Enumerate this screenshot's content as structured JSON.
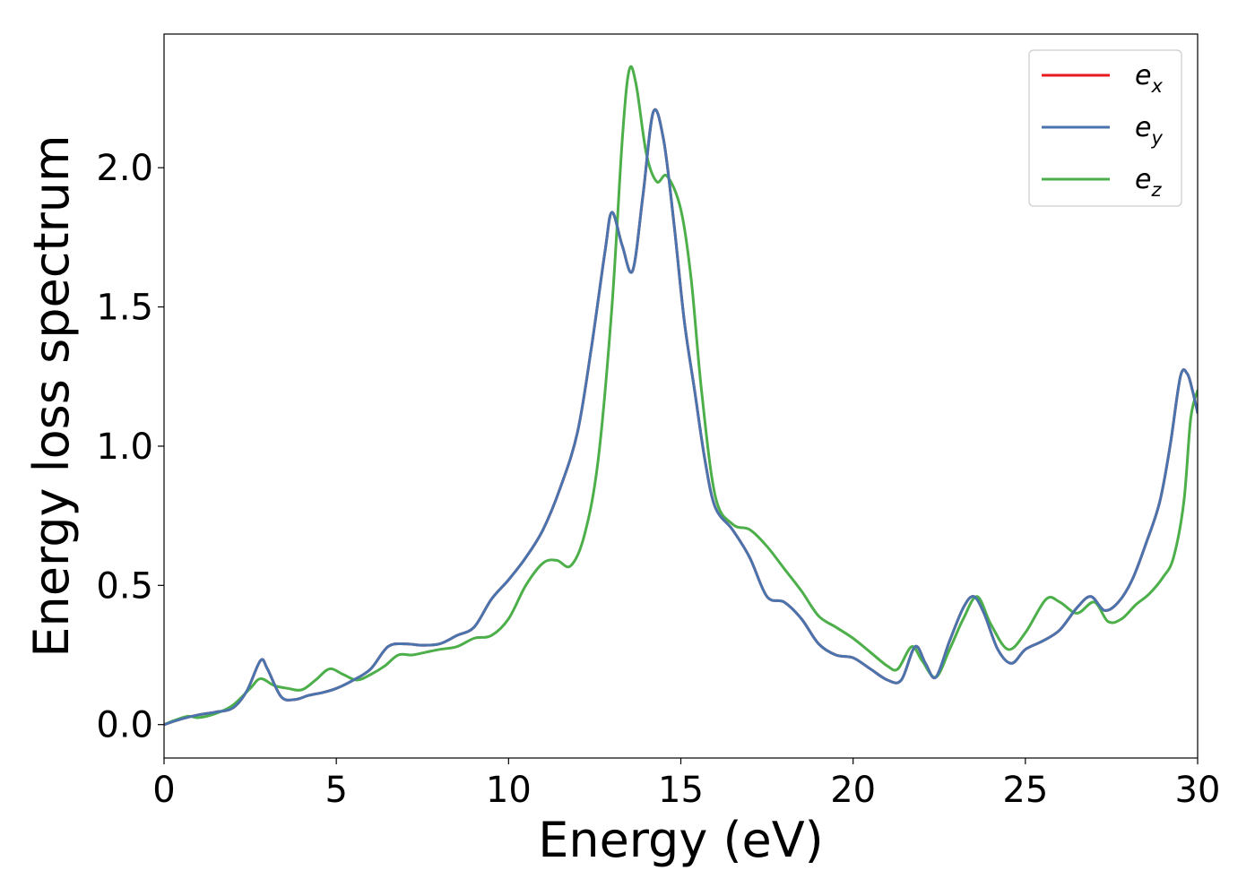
{
  "chart_data": {
    "type": "line",
    "xlabel": "Energy (eV)",
    "ylabel": "Energy loss spectrum",
    "xlim": [
      0,
      30
    ],
    "ylim": [
      -0.12,
      2.48
    ],
    "xticks": [
      0,
      5,
      10,
      15,
      20,
      25,
      30
    ],
    "yticks": [
      0.0,
      0.5,
      1.0,
      1.5,
      2.0
    ],
    "xtick_labels": [
      "0",
      "5",
      "10",
      "15",
      "20",
      "25",
      "30"
    ],
    "ytick_labels": [
      "0.0",
      "0.5",
      "1.0",
      "1.5",
      "2.0"
    ],
    "grid": false,
    "legend": {
      "position": "upper right",
      "items": [
        {
          "base": "e",
          "sub": "x"
        },
        {
          "base": "e",
          "sub": "y"
        },
        {
          "base": "e",
          "sub": "z"
        }
      ]
    },
    "series": [
      {
        "name": "e_x",
        "color": "#e41a1c",
        "x": [
          0,
          0.5,
          1,
          1.5,
          2,
          2.4,
          2.8,
          3.0,
          3.4,
          3.8,
          4.2,
          4.6,
          5.0,
          5.5,
          6.0,
          6.5,
          7.0,
          7.5,
          8.0,
          8.5,
          9.0,
          9.5,
          10.0,
          10.5,
          11.0,
          11.5,
          12.0,
          12.4,
          12.8,
          13.0,
          13.3,
          13.6,
          13.9,
          14.2,
          14.5,
          14.8,
          15.1,
          15.4,
          15.7,
          16.0,
          16.5,
          17.0,
          17.5,
          18.0,
          18.5,
          19.0,
          19.5,
          20.0,
          20.5,
          21.0,
          21.4,
          21.8,
          22.1,
          22.4,
          22.8,
          23.2,
          23.5,
          23.8,
          24.2,
          24.6,
          25.0,
          25.5,
          26.0,
          26.5,
          26.9,
          27.3,
          27.7,
          28.1,
          28.5,
          28.9,
          29.2,
          29.5,
          29.7,
          29.85,
          30.0
        ],
        "y": [
          0,
          0.02,
          0.035,
          0.045,
          0.06,
          0.12,
          0.23,
          0.2,
          0.1,
          0.09,
          0.105,
          0.115,
          0.13,
          0.16,
          0.2,
          0.28,
          0.29,
          0.285,
          0.29,
          0.32,
          0.35,
          0.45,
          0.52,
          0.6,
          0.7,
          0.85,
          1.05,
          1.35,
          1.7,
          1.84,
          1.72,
          1.63,
          1.9,
          2.2,
          2.1,
          1.8,
          1.45,
          1.2,
          0.95,
          0.78,
          0.7,
          0.6,
          0.46,
          0.44,
          0.38,
          0.29,
          0.25,
          0.24,
          0.2,
          0.16,
          0.16,
          0.28,
          0.22,
          0.17,
          0.3,
          0.42,
          0.46,
          0.4,
          0.27,
          0.22,
          0.27,
          0.3,
          0.34,
          0.42,
          0.46,
          0.41,
          0.44,
          0.52,
          0.65,
          0.8,
          1.0,
          1.25,
          1.26,
          1.2,
          1.12
        ]
      },
      {
        "name": "e_y",
        "color": "#4a74ae",
        "x": [
          0,
          0.5,
          1,
          1.5,
          2,
          2.4,
          2.8,
          3.0,
          3.4,
          3.8,
          4.2,
          4.6,
          5.0,
          5.5,
          6.0,
          6.5,
          7.0,
          7.5,
          8.0,
          8.5,
          9.0,
          9.5,
          10.0,
          10.5,
          11.0,
          11.5,
          12.0,
          12.4,
          12.8,
          13.0,
          13.3,
          13.6,
          13.9,
          14.2,
          14.5,
          14.8,
          15.1,
          15.4,
          15.7,
          16.0,
          16.5,
          17.0,
          17.5,
          18.0,
          18.5,
          19.0,
          19.5,
          20.0,
          20.5,
          21.0,
          21.4,
          21.8,
          22.1,
          22.4,
          22.8,
          23.2,
          23.5,
          23.8,
          24.2,
          24.6,
          25.0,
          25.5,
          26.0,
          26.5,
          26.9,
          27.3,
          27.7,
          28.1,
          28.5,
          28.9,
          29.2,
          29.5,
          29.7,
          29.85,
          30.0
        ],
        "y": [
          0,
          0.02,
          0.035,
          0.045,
          0.06,
          0.12,
          0.23,
          0.2,
          0.1,
          0.09,
          0.105,
          0.115,
          0.13,
          0.16,
          0.2,
          0.28,
          0.29,
          0.285,
          0.29,
          0.32,
          0.35,
          0.45,
          0.52,
          0.6,
          0.7,
          0.85,
          1.05,
          1.35,
          1.7,
          1.84,
          1.72,
          1.63,
          1.9,
          2.2,
          2.1,
          1.8,
          1.45,
          1.2,
          0.95,
          0.78,
          0.7,
          0.6,
          0.46,
          0.44,
          0.38,
          0.29,
          0.25,
          0.24,
          0.2,
          0.16,
          0.16,
          0.28,
          0.22,
          0.17,
          0.3,
          0.42,
          0.46,
          0.4,
          0.27,
          0.22,
          0.27,
          0.3,
          0.34,
          0.42,
          0.46,
          0.41,
          0.44,
          0.52,
          0.65,
          0.8,
          1.0,
          1.25,
          1.26,
          1.2,
          1.12
        ]
      },
      {
        "name": "e_z",
        "color": "#4daf4a",
        "x": [
          0,
          0.3,
          0.7,
          1.0,
          1.5,
          2.0,
          2.5,
          2.8,
          3.2,
          3.6,
          4.0,
          4.4,
          4.8,
          5.2,
          5.6,
          6.0,
          6.4,
          6.8,
          7.2,
          7.6,
          8.0,
          8.5,
          9.0,
          9.5,
          10.0,
          10.5,
          11.0,
          11.4,
          11.8,
          12.2,
          12.6,
          13.0,
          13.3,
          13.5,
          13.7,
          14.0,
          14.3,
          14.6,
          15.0,
          15.3,
          15.6,
          16.0,
          16.5,
          17.0,
          17.5,
          18.0,
          18.5,
          19.0,
          19.5,
          20.0,
          20.5,
          21.0,
          21.3,
          21.7,
          22.0,
          22.4,
          22.8,
          23.2,
          23.6,
          24.0,
          24.5,
          25.0,
          25.6,
          26.0,
          26.5,
          27.0,
          27.4,
          27.8,
          28.2,
          28.6,
          29.0,
          29.3,
          29.6,
          29.8,
          30.0
        ],
        "y": [
          0,
          0.015,
          0.03,
          0.025,
          0.04,
          0.07,
          0.13,
          0.165,
          0.14,
          0.13,
          0.125,
          0.16,
          0.2,
          0.18,
          0.16,
          0.18,
          0.21,
          0.25,
          0.25,
          0.26,
          0.27,
          0.28,
          0.31,
          0.32,
          0.38,
          0.5,
          0.58,
          0.59,
          0.57,
          0.68,
          0.95,
          1.5,
          2.1,
          2.35,
          2.3,
          2.05,
          1.95,
          1.97,
          1.85,
          1.6,
          1.2,
          0.82,
          0.72,
          0.7,
          0.64,
          0.56,
          0.48,
          0.39,
          0.35,
          0.31,
          0.26,
          0.21,
          0.2,
          0.28,
          0.23,
          0.17,
          0.27,
          0.38,
          0.46,
          0.36,
          0.27,
          0.33,
          0.45,
          0.44,
          0.4,
          0.44,
          0.37,
          0.38,
          0.43,
          0.47,
          0.53,
          0.6,
          0.8,
          1.1,
          1.2
        ]
      }
    ]
  }
}
